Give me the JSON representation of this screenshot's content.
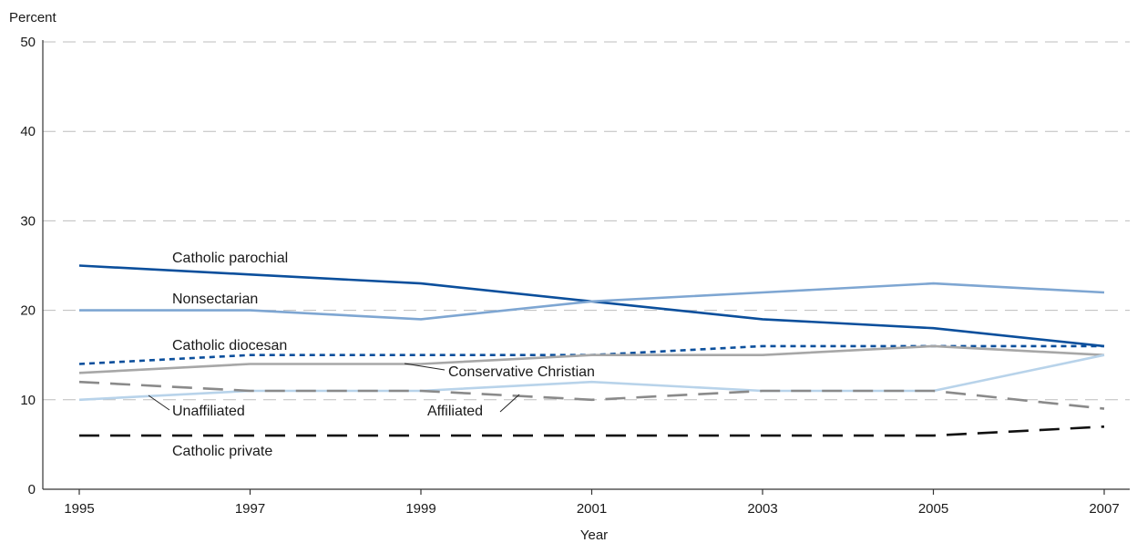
{
  "chart_data": {
    "type": "line",
    "title": "",
    "ylabel": "Percent",
    "xlabel": "Year",
    "x": [
      1995,
      1997,
      1999,
      2001,
      2003,
      2005,
      2007
    ],
    "x_tick_labels": [
      "1995",
      "1997",
      "1999",
      "2001",
      "2003",
      "2005",
      "2007"
    ],
    "y_ticks": [
      0,
      10,
      20,
      30,
      40,
      50
    ],
    "y_tick_labels": [
      "0",
      "10",
      "20",
      "30",
      "40",
      "50"
    ],
    "ylim": [
      0,
      50
    ],
    "grid": "horizontal dashed",
    "series": [
      {
        "name": "Catholic parochial",
        "values": [
          25,
          24,
          23,
          21,
          19,
          18,
          16
        ],
        "color": "#0b4f9c",
        "style": "solid"
      },
      {
        "name": "Nonsectarian",
        "values": [
          20,
          20,
          19,
          21,
          22,
          23,
          22
        ],
        "color": "#7ea6d2",
        "style": "solid"
      },
      {
        "name": "Catholic diocesan",
        "values": [
          14,
          15,
          15,
          15,
          16,
          16,
          16
        ],
        "color": "#0b4f9c",
        "style": "dotted"
      },
      {
        "name": "Conservative Christian",
        "values": [
          13,
          14,
          14,
          15,
          15,
          16,
          15
        ],
        "color": "#a7a7a7",
        "style": "solid"
      },
      {
        "name": "Unaffiliated",
        "values": [
          10,
          11,
          11,
          12,
          11,
          11,
          15
        ],
        "color": "#b8d3ea",
        "style": "solid"
      },
      {
        "name": "Affiliated",
        "values": [
          12,
          11,
          11,
          10,
          11,
          11,
          9
        ],
        "color": "#8a8a8a",
        "style": "dashed"
      },
      {
        "name": "Catholic private",
        "values": [
          6,
          6,
          6,
          6,
          6,
          6,
          7
        ],
        "color": "#111111",
        "style": "dashed"
      }
    ]
  }
}
